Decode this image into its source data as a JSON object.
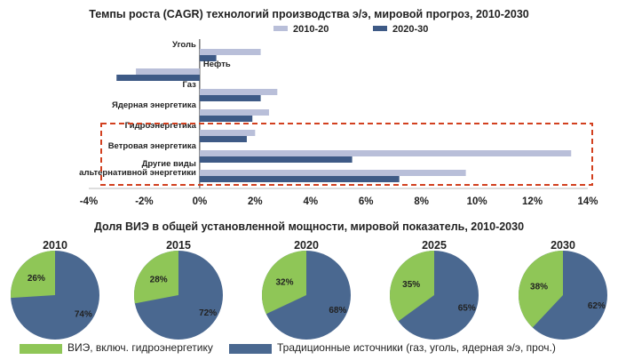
{
  "chart_data": [
    {
      "type": "bar",
      "orientation": "horizontal",
      "title": "Темпы роста (CAGR) технологий производства э/э, мировой прогроз, 2010-2030",
      "categories": [
        "Уголь",
        "Нефть",
        "Газ",
        "Ядерная энергетика",
        "Гидроэнергетика",
        "Ветровая энергетика",
        "Другие виды альтернативной энергетики"
      ],
      "category_label_lines": [
        [
          "Уголь"
        ],
        [
          "Нефть"
        ],
        [
          "Газ"
        ],
        [
          "Ядерная энергетика"
        ],
        [
          "Гидроэнергетика"
        ],
        [
          "Ветровая энергетика"
        ],
        [
          "Другие виды",
          "альтернативной энергетики"
        ]
      ],
      "series": [
        {
          "name": "2010-20",
          "color": "#b9bfd9",
          "values": [
            2.2,
            -2.3,
            2.8,
            2.5,
            2.0,
            13.4,
            9.6
          ]
        },
        {
          "name": "2020-30",
          "color": "#3e5a86",
          "values": [
            0.6,
            -3.0,
            2.2,
            1.9,
            1.7,
            5.5,
            7.2
          ]
        }
      ],
      "xlim": [
        -4,
        14
      ],
      "xticks": [
        "-4%",
        "-2%",
        "0%",
        "2%",
        "4%",
        "6%",
        "8%",
        "10%",
        "12%",
        "14%"
      ],
      "xtick_values": [
        -4,
        -2,
        0,
        2,
        4,
        6,
        8,
        10,
        12,
        14
      ],
      "legend_position": "top-right",
      "highlight": {
        "style": "dashed",
        "color": "#d2401f",
        "categories": [
          "Гидроэнергетика",
          "Ветровая энергетика",
          "Другие виды альтернативной энергетики"
        ]
      }
    },
    {
      "type": "pie",
      "title": "Доля ВИЭ в общей установленной мощности, мировой показатель, 2010-2030",
      "legend": [
        {
          "name": "ВИЭ, включ. гидроэнергетику",
          "color": "#8fc657"
        },
        {
          "name": "Традиционные источники (газ, уголь, ядерная э/э, проч.)",
          "color": "#4a6890"
        }
      ],
      "pies": [
        {
          "year": "2010",
          "renewable": 26,
          "traditional": 74,
          "renewable_label": "26%",
          "traditional_label": "74%"
        },
        {
          "year": "2015",
          "renewable": 28,
          "traditional": 72,
          "renewable_label": "28%",
          "traditional_label": "72%"
        },
        {
          "year": "2020",
          "renewable": 32,
          "traditional": 68,
          "renewable_label": "32%",
          "traditional_label": "68%"
        },
        {
          "year": "2025",
          "renewable": 35,
          "traditional": 65,
          "renewable_label": "35%",
          "traditional_label": "65%"
        },
        {
          "year": "2030",
          "renewable": 38,
          "traditional": 62,
          "renewable_label": "38%",
          "traditional_label": "62%"
        }
      ]
    }
  ]
}
